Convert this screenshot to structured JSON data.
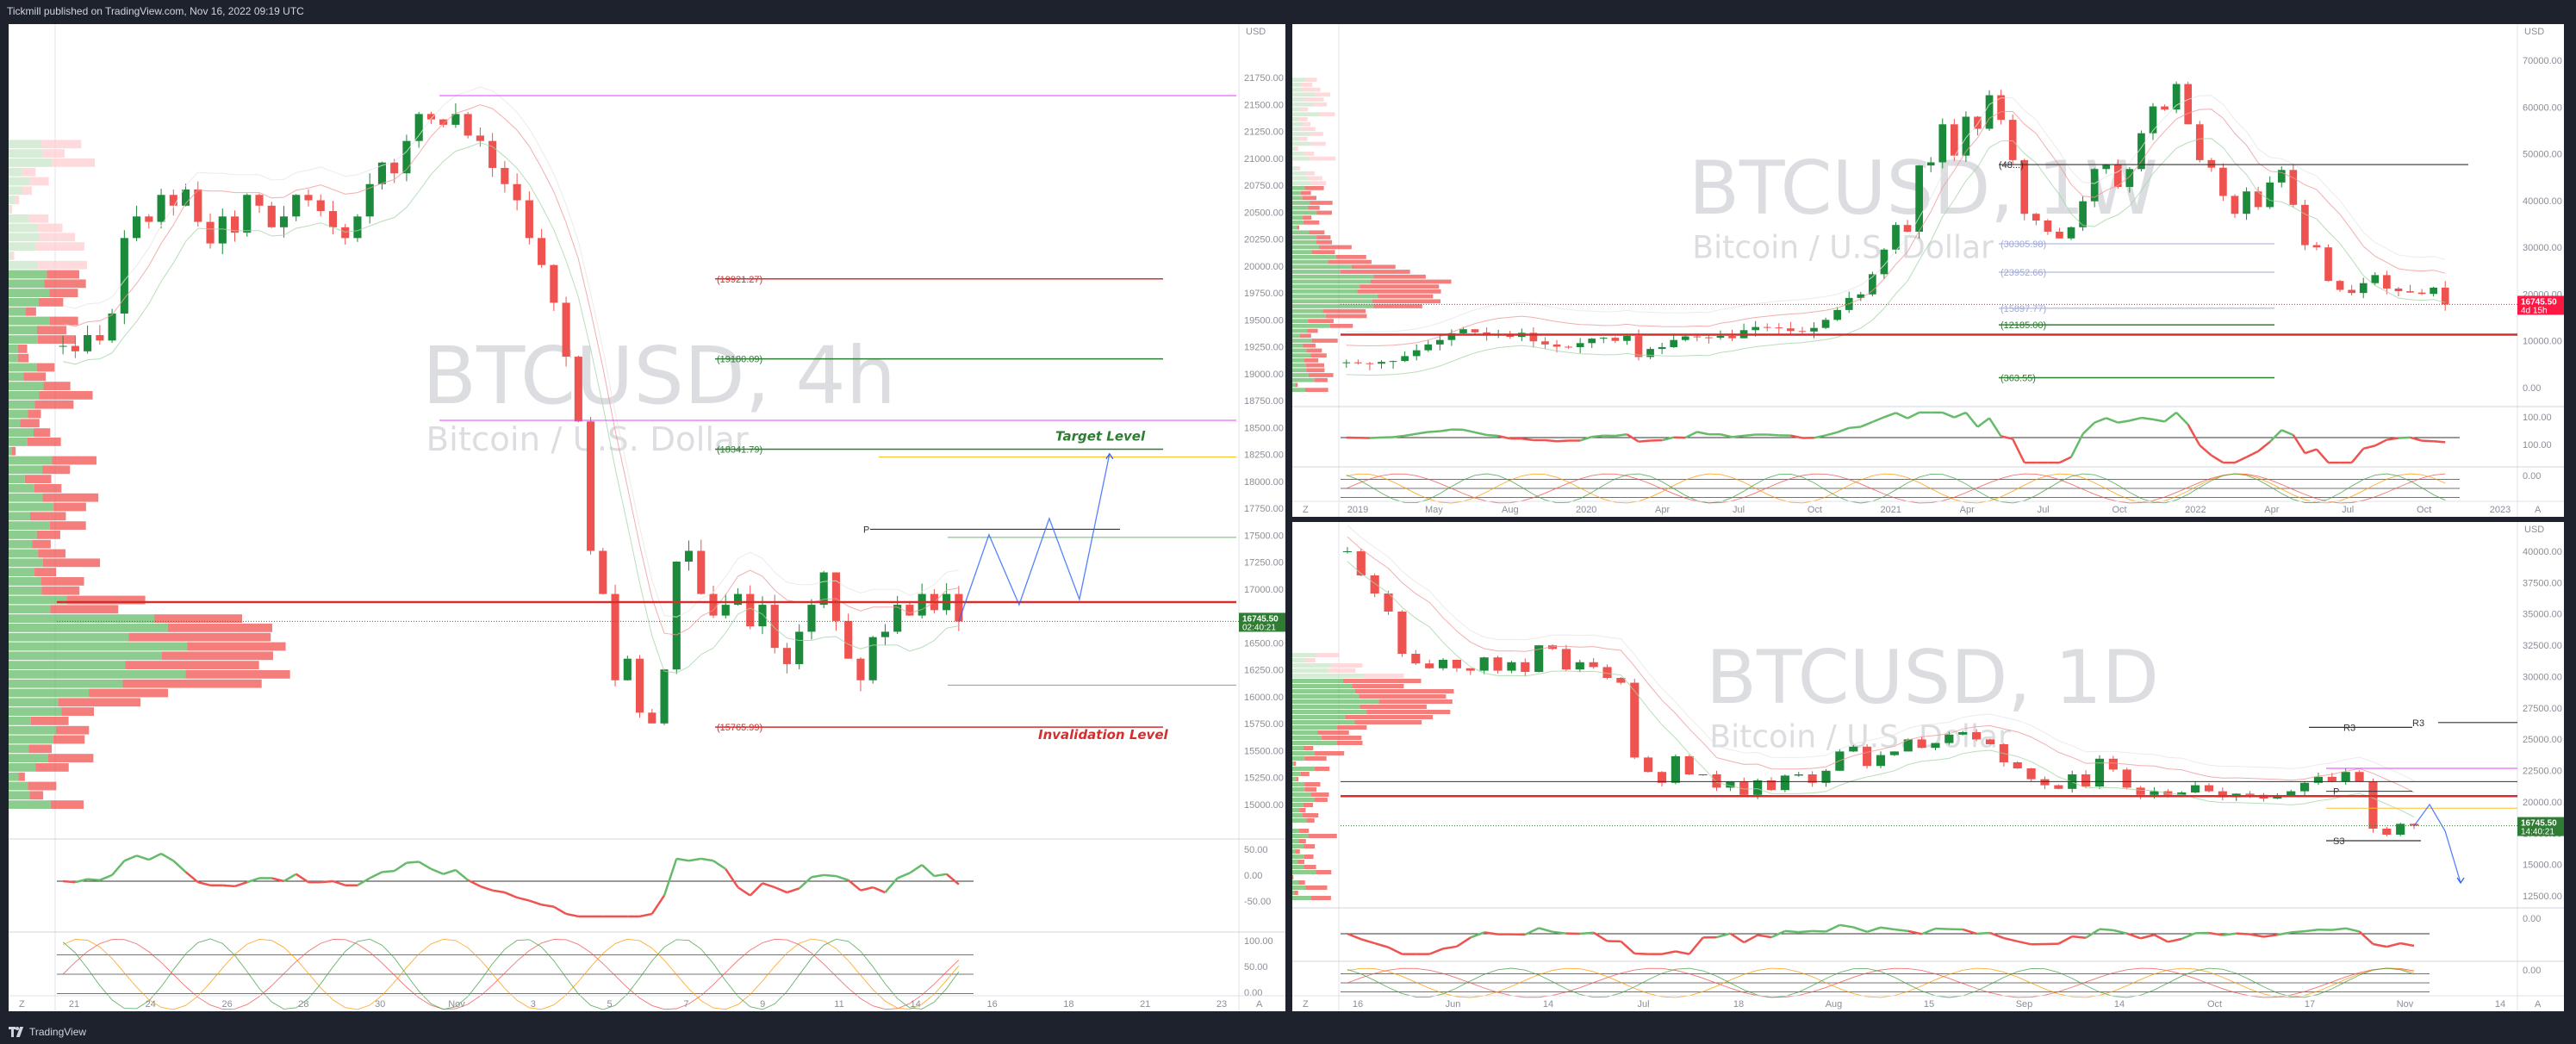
{
  "header": {
    "publish_text": "Tickmill published on TradingView.com, Nov 16, 2022 09:19 UTC"
  },
  "footer": {
    "brand": "TradingView"
  },
  "colors": {
    "up": "#26a69a",
    "up_dark": "#1b8a3a",
    "down": "#ef5350",
    "level_red": "#d32f2f",
    "level_green": "#2e7d32",
    "magenta": "#e040fb",
    "projection": "#2962ff",
    "price_green": "#2e7d32",
    "price_red": "#ff1744"
  },
  "panes": [
    {
      "id": "4h",
      "watermark_symbol": "BTCUSD, 4h",
      "watermark_name": "Bitcoin / U.S. Dollar",
      "price_axis": {
        "currency": "USD",
        "ticks": [
          "21750.00",
          "21500.00",
          "21250.00",
          "21000.00",
          "20750.00",
          "20500.00",
          "20250.00",
          "20000.00",
          "19750.00",
          "19500.00",
          "19250.00",
          "19000.00",
          "18750.00",
          "18500.00",
          "18250.00",
          "18000.00",
          "17750.00",
          "17500.00",
          "17250.00",
          "17000.00",
          "16750.00",
          "16500.00",
          "16250.00",
          "16000.00",
          "15750.00",
          "15500.00",
          "15250.00",
          "15000.00"
        ]
      },
      "time_axis": [
        "21",
        "24",
        "26",
        "28",
        "30",
        "Nov",
        "3",
        "5",
        "7",
        "9",
        "11",
        "14",
        "16",
        "18",
        "21",
        "23"
      ],
      "levels": [
        {
          "label": "(19921.27)",
          "color": "red"
        },
        {
          "label": "(19180.09)",
          "color": "green"
        },
        {
          "label": "(18341.79)",
          "color": "green"
        },
        {
          "label": "(15765.99)",
          "color": "red"
        }
      ],
      "pivot_label": "P",
      "annotations": {
        "target": "Target Level",
        "invalidation": "Invalidation Level"
      },
      "price_tag": {
        "price": "16745.50",
        "timer": "02:40:21"
      },
      "osc1_ticks": [
        "50.00",
        "0.00",
        "-50.00"
      ],
      "osc2_ticks": [
        "100.00",
        "50.00",
        "0.00"
      ],
      "corner_left": "Z",
      "corner_right": "A"
    },
    {
      "id": "1W",
      "watermark_symbol": "BTCUSD, 1W",
      "watermark_name": "Bitcoin / U.S. Dollar",
      "price_axis": {
        "currency": "USD",
        "ticks": [
          "70000.00",
          "60000.00",
          "50000.00",
          "40000.00",
          "30000.00",
          "20000.00",
          "10000.00",
          "0.00"
        ]
      },
      "time_axis": [
        "2019",
        "May",
        "Aug",
        "2020",
        "Apr",
        "Jul",
        "Oct",
        "2021",
        "Apr",
        "Jul",
        "Oct",
        "2022",
        "Apr",
        "Jul",
        "Oct",
        "2023"
      ],
      "levels": [
        {
          "label": "(48...)",
          "color": "grey"
        },
        {
          "label": "(30305.98)",
          "color": "grey"
        },
        {
          "label": "(23952.66)",
          "color": "grey"
        },
        {
          "label": "(15897.77)",
          "color": "grey"
        },
        {
          "label": "(12185.00)",
          "color": "green"
        },
        {
          "label": "(363.55)",
          "color": "green"
        }
      ],
      "price_tag": {
        "price": "16745.50",
        "timer": "4d 15h"
      },
      "osc1_ticks": [
        "100.00",
        "100.00"
      ],
      "osc2_ticks": [
        "0.00"
      ],
      "corner_left": "Z",
      "corner_right": "A"
    },
    {
      "id": "1D",
      "watermark_symbol": "BTCUSD, 1D",
      "watermark_name": "Bitcoin / U.S. Dollar",
      "price_axis": {
        "currency": "USD",
        "ticks": [
          "40000.00",
          "37500.00",
          "35000.00",
          "32500.00",
          "30000.00",
          "27500.00",
          "25000.00",
          "22500.00",
          "20000.00",
          "17500.00",
          "15000.00",
          "12500.00"
        ]
      },
      "time_axis": [
        "16",
        "Jun",
        "14",
        "Jul",
        "18",
        "Aug",
        "15",
        "Sep",
        "14",
        "Oct",
        "17",
        "Nov",
        "14"
      ],
      "pivot_labels": [
        "R3",
        "R3",
        "P",
        "S3"
      ],
      "price_tag": {
        "price": "16745.50",
        "timer": "14:40:21"
      },
      "osc1_ticks": [
        "0.00"
      ],
      "osc2_ticks": [
        "0.00"
      ],
      "corner_left": "Z",
      "corner_right": "A"
    }
  ],
  "chart_data": [
    {
      "type": "candlestick",
      "title": "BTCUSD, 4h",
      "ylim": [
        15000,
        21900
      ],
      "levels": [
        19921.27,
        19180.09,
        18341.79,
        15765.99
      ],
      "close": [
        19300,
        19250,
        19400,
        19350,
        19600,
        20300,
        20500,
        20450,
        20700,
        20600,
        20750,
        20450,
        20250,
        20500,
        20350,
        20700,
        20600,
        20400,
        20500,
        20700,
        20650,
        20550,
        20400,
        20300,
        20500,
        20800,
        21000,
        20900,
        21200,
        21450,
        21400,
        21350,
        21450,
        21250,
        21200,
        20950,
        20800,
        20650,
        20300,
        20050,
        19700,
        19200,
        18600,
        17400,
        17000,
        16200,
        16400,
        15900,
        15800,
        16300,
        17300,
        17400,
        17000,
        16800,
        16900,
        17000,
        16700,
        16900,
        16500,
        16350,
        16650,
        16900,
        17200,
        16750,
        16400,
        16200,
        16600,
        16650,
        16900,
        16800,
        17000,
        16850,
        17000,
        16745.5
      ],
      "projection_path": [
        16745.5,
        17550,
        16900,
        17700,
        16950,
        18300
      ]
    },
    {
      "type": "candlestick",
      "title": "BTCUSD, 1W",
      "ylim": [
        -3000,
        74000
      ],
      "levels": [
        48000,
        30305.98,
        23952.66,
        15897.77,
        12185.0,
        363.55
      ],
      "close": [
        3800,
        3600,
        3500,
        3900,
        4100,
        5200,
        6500,
        7800,
        8800,
        10300,
        11200,
        10500,
        9800,
        10100,
        9500,
        10400,
        8500,
        7800,
        7300,
        7200,
        8100,
        9100,
        9300,
        8600,
        9700,
        5000,
        6800,
        7200,
        8800,
        9600,
        9400,
        9300,
        9700,
        9200,
        11000,
        11700,
        11600,
        11400,
        10800,
        10700,
        11500,
        13300,
        15500,
        18200,
        19000,
        23500,
        29000,
        34500,
        33000,
        47800,
        48500,
        57000,
        50000,
        58700,
        56000,
        63500,
        58000,
        49000,
        37000,
        35500,
        33000,
        31500,
        34000,
        39800,
        47000,
        48000,
        43000,
        47000,
        55000,
        61000,
        60300,
        66000,
        57000,
        49000,
        47300,
        41000,
        37000,
        42000,
        38500,
        44000,
        46800,
        39000,
        30000,
        29500,
        22000,
        20000,
        19300,
        21500,
        23300,
        20300,
        19700,
        19400,
        19100,
        20500,
        16745.5
      ]
    },
    {
      "type": "candlestick",
      "title": "BTCUSD, 1D",
      "ylim": [
        10500,
        40500
      ],
      "close": [
        39500,
        37500,
        36000,
        34500,
        31000,
        30200,
        29800,
        30500,
        29800,
        29600,
        30700,
        29600,
        30300,
        29500,
        31700,
        31400,
        29700,
        30300,
        29900,
        29000,
        28600,
        22400,
        21200,
        20300,
        22500,
        21000,
        21000,
        19900,
        20400,
        19300,
        20500,
        19700,
        20900,
        21000,
        20300,
        21300,
        22900,
        23300,
        21700,
        22600,
        22900,
        23900,
        23200,
        23600,
        24300,
        24500,
        23900,
        23500,
        22000,
        21500,
        20600,
        20100,
        19800,
        21000,
        20000,
        22300,
        21400,
        19900,
        19300,
        19600,
        19300,
        19500,
        20100,
        19600,
        19100,
        19400,
        19300,
        19000,
        19200,
        19600,
        20300,
        20800,
        20400,
        21200,
        20400,
        16500,
        16000,
        16900,
        16745.5
      ],
      "projection_path": [
        16745.5,
        18500,
        16300,
        12000
      ]
    }
  ]
}
